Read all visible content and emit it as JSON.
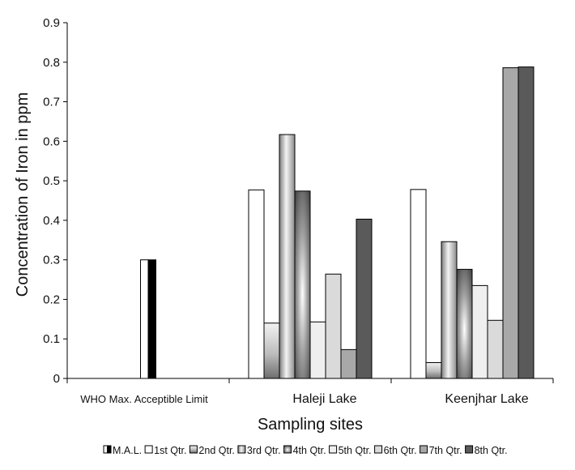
{
  "chart_data": {
    "type": "bar",
    "title": "",
    "xlabel": "Sampling sites",
    "ylabel": "Concentration of Iron in ppm",
    "ylim": [
      0,
      0.9
    ],
    "yticks": [
      "0",
      "0.1",
      "0.2",
      "0.3",
      "0.4",
      "0.5",
      "0.6",
      "0.7",
      "0.8",
      "0.9"
    ],
    "grid": false,
    "legend_position": "bottom",
    "categories": [
      "WHO Max. Acceptible Limit",
      "Haleji Lake",
      "Keenjhar Lake"
    ],
    "series": [
      {
        "name": "M.A.L.",
        "style": "bw-split",
        "values": [
          0.3,
          null,
          null
        ]
      },
      {
        "name": "1st Qtr.",
        "style": "white",
        "values": [
          null,
          0.477,
          0.478
        ]
      },
      {
        "name": "2nd Qtr.",
        "style": "grad-vertical",
        "values": [
          null,
          0.14,
          0.04
        ]
      },
      {
        "name": "3rd Qtr.",
        "style": "grad-silver",
        "values": [
          null,
          0.617,
          0.346
        ]
      },
      {
        "name": "4th Qtr.",
        "style": "grad-radial",
        "values": [
          null,
          0.474,
          0.276
        ]
      },
      {
        "name": "5th Qtr.",
        "style": "very-light",
        "values": [
          null,
          0.143,
          0.235
        ]
      },
      {
        "name": "6th Qtr.",
        "style": "light-gray",
        "values": [
          null,
          0.264,
          0.147
        ]
      },
      {
        "name": "7th Qtr.",
        "style": "mid-gray",
        "values": [
          null,
          0.073,
          0.786
        ]
      },
      {
        "name": "8th Qtr.",
        "style": "dark-gray",
        "values": [
          null,
          0.403,
          0.788
        ]
      }
    ],
    "colors": {
      "axis": "#000000",
      "bar_stroke": "#000000",
      "white": "#ffffff",
      "very_light": "#efefef",
      "light_gray": "#dadada",
      "mid_gray": "#a8a8a8",
      "dark_gray": "#5a5a5a"
    }
  }
}
